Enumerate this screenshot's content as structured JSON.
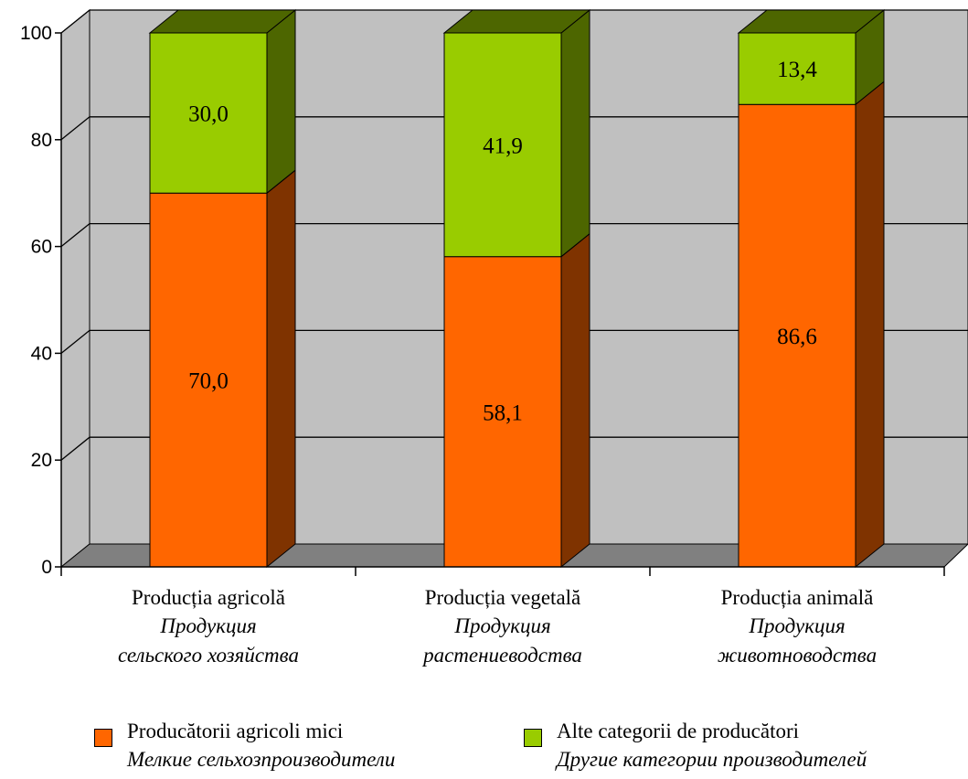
{
  "chart_data": {
    "type": "bar",
    "stacked": true,
    "three_d": true,
    "categories": [
      {
        "label": "Producția agricolă",
        "label_ru_1": "Продукция",
        "label_ru_2": "сельского хозяйства"
      },
      {
        "label": "Producția vegetală",
        "label_ru_1": "Продукция",
        "label_ru_2": "растениеводства"
      },
      {
        "label": "Producția animală",
        "label_ru_1": "Продукция",
        "label_ru_2": "животноводства"
      }
    ],
    "series": [
      {
        "name": "Producătorii agricoli mici",
        "name_ru": "Мелкие сельхозпроизводители",
        "values": [
          70.0,
          58.1,
          86.6
        ],
        "labels": [
          "70,0",
          "58,1",
          "86,6"
        ],
        "color": "#ff6600",
        "side_color": "#7f3300"
      },
      {
        "name": "Alte categorii de producători",
        "name_ru": "Другие категории производителей",
        "values": [
          30.0,
          41.9,
          13.4
        ],
        "labels": [
          "30,0",
          "41,9",
          "13,4"
        ],
        "color": "#99cc00",
        "side_color": "#4d6600"
      }
    ],
    "ylim": [
      0,
      100
    ],
    "yticks": [
      "0",
      "20",
      "40",
      "60",
      "80",
      "100"
    ],
    "grid": true,
    "wall_color": "#c0c0c0",
    "floor_color": "#808080",
    "legend_position": "bottom"
  }
}
